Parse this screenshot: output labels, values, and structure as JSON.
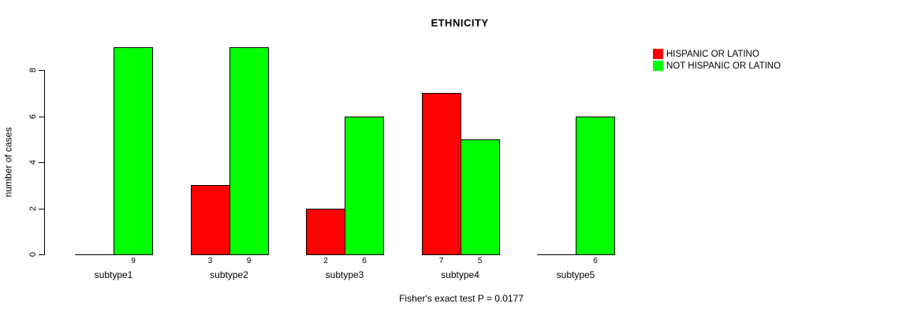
{
  "window": {
    "background": "#FFFFFF"
  },
  "chart_data": {
    "type": "bar",
    "grouped": true,
    "title": "ETHNICITY",
    "xlabel": "",
    "ylabel": "number of cases",
    "categories": [
      "subtype1",
      "subtype2",
      "subtype3",
      "subtype4",
      "subtype5"
    ],
    "series": [
      {
        "name": "HISPANIC OR LATINO",
        "color": "#FF0000",
        "values": [
          0,
          3,
          2,
          7,
          0
        ]
      },
      {
        "name": "NOT HISPANIC OR LATINO",
        "color": "#00FF00",
        "values": [
          9,
          9,
          6,
          5,
          6
        ]
      }
    ],
    "bar_value_labels": [
      [
        "",
        "9"
      ],
      [
        "3",
        "9"
      ],
      [
        "2",
        "6"
      ],
      [
        "7",
        "5"
      ],
      [
        "",
        "6"
      ]
    ],
    "yticks": [
      0,
      2,
      4,
      6,
      8
    ],
    "ylim": [
      0,
      9
    ],
    "grid": false,
    "legend_position": "top-right",
    "annotation": "Fisher's exact test P = 0.0177",
    "bar_border_color": "#000000",
    "axis_color": "#000000"
  },
  "legend": {
    "items": [
      {
        "label": "HISPANIC OR LATINO",
        "color": "#FF0000"
      },
      {
        "label": "NOT HISPANIC OR LATINO",
        "color": "#00FF00"
      }
    ]
  }
}
